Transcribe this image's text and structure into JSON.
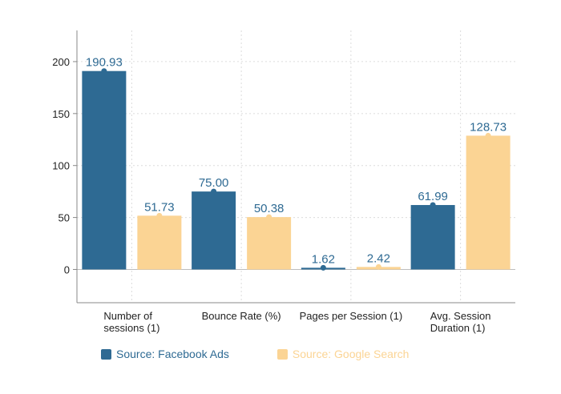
{
  "chart_data": {
    "type": "bar",
    "categories": [
      [
        "Number of",
        "sessions (1)"
      ],
      [
        "Bounce Rate (%)"
      ],
      [
        "Pages per Session (1)"
      ],
      [
        "Avg. Session",
        "Duration (1)"
      ]
    ],
    "series": [
      {
        "name": "Source: Facebook Ads",
        "color": "#2e6a93",
        "label_color": "#2e6a93",
        "values": [
          190.93,
          75.0,
          1.62,
          61.99
        ],
        "labels": [
          "190.93",
          "75.00",
          "1.62",
          "61.99"
        ]
      },
      {
        "name": "Source: Google Search",
        "color": "#fbd494",
        "label_color": "#2e6a93",
        "values": [
          51.73,
          50.38,
          2.42,
          128.73
        ],
        "labels": [
          "51.73",
          "50.38",
          "2.42",
          "128.73"
        ]
      }
    ],
    "ylim": [
      -32,
      230
    ],
    "yticks": [
      "0",
      "50",
      "100",
      "150",
      "200"
    ],
    "ytick_values": [
      0,
      50,
      100,
      150,
      200
    ],
    "grid": true,
    "legend": "bottom",
    "legend_text_colors": [
      "#2e6a93",
      "#fbd494"
    ]
  }
}
